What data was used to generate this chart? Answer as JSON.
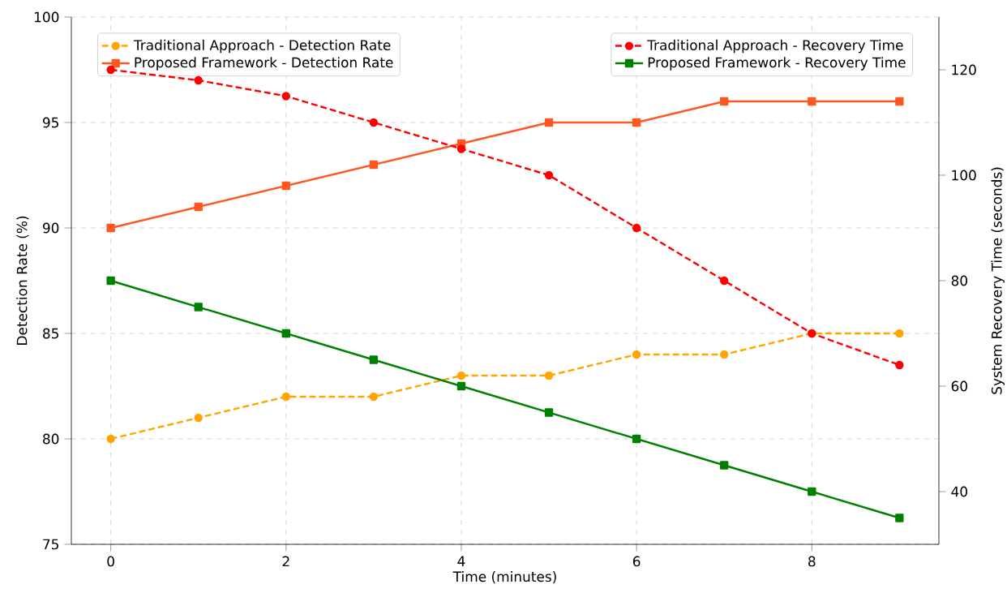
{
  "chart_data": {
    "type": "line",
    "xlabel": "Time (minutes)",
    "ylabel": "Detection Rate (%)",
    "y2label": "System Recovery Time (seconds)",
    "x": [
      0,
      1,
      2,
      3,
      4,
      5,
      6,
      7,
      8,
      9
    ],
    "series": [
      {
        "name": "Traditional Approach - Detection Rate",
        "color": "#ffa500",
        "marker": "circle",
        "line_style": "dashed",
        "values": [
          80,
          81,
          82,
          82,
          83,
          83,
          84,
          84,
          85,
          85
        ]
      },
      {
        "name": "Proposed Framework - Detection Rate",
        "color": "#ff5722",
        "marker": "square",
        "line_style": "solid",
        "values": [
          90,
          91,
          92,
          93,
          94,
          95,
          95,
          96,
          96,
          96
        ]
      },
      {
        "name": "Traditional Approach - Recovery Time",
        "color": "#ff0000",
        "marker": "circle",
        "line_style": "dashed",
        "axis": "y2",
        "values": [
          120,
          118,
          115,
          110,
          105,
          100,
          90,
          80,
          70,
          64
        ]
      },
      {
        "name": "Proposed Framework - Recovery Time",
        "color": "#008000",
        "marker": "square",
        "line_style": "solid",
        "axis": "y2",
        "values": [
          80,
          75,
          70,
          65,
          60,
          55,
          50,
          45,
          40,
          35
        ]
      }
    ],
    "xlim": [
      -0.45,
      9.45
    ],
    "xticks": [
      0,
      2,
      4,
      6,
      8
    ],
    "ylim": [
      75,
      100
    ],
    "yticks": [
      75,
      80,
      85,
      90,
      95,
      100
    ],
    "y2lim": [
      30,
      130
    ],
    "y2ticks": [
      40,
      60,
      80,
      100,
      120
    ],
    "grid": true,
    "legend": "top"
  }
}
